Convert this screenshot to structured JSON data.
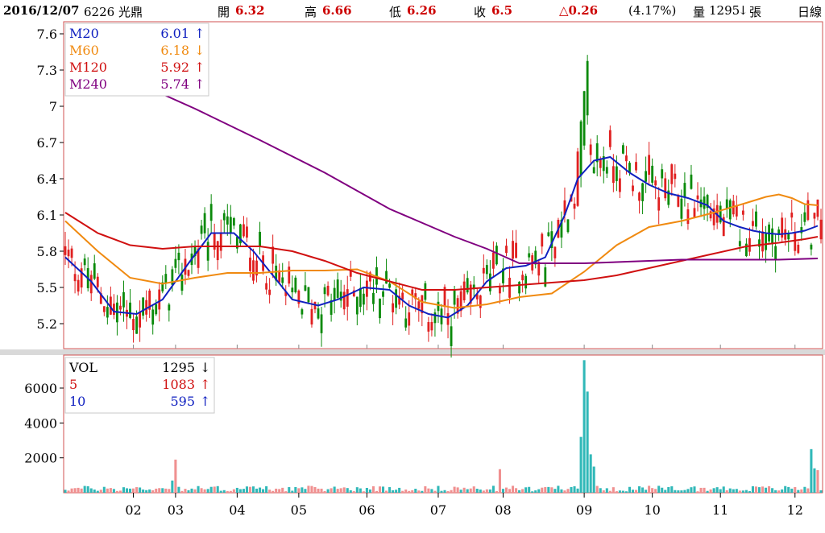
{
  "header": {
    "date": "2016/12/07",
    "stock": "6226 光鼎",
    "open_label": "開",
    "open": "6.32",
    "high_label": "高",
    "high": "6.66",
    "low_label": "低",
    "low": "6.26",
    "close_label": "收",
    "close": "6.5",
    "change": "△0.26",
    "change_pct": "(4.17%)",
    "volume_label": "量",
    "volume": "1295",
    "volume_arrow": "↓",
    "volume_unit": "張",
    "period": "日線"
  },
  "colors": {
    "up": "#e02020",
    "down": "#0a8a0a",
    "m20": "#1020c0",
    "m60": "#f08a10",
    "m120": "#d01010",
    "m240": "#800080",
    "vol_up": "#f09090",
    "vol_down": "#30b8b8"
  },
  "chart_data": [
    {
      "type": "candlestick",
      "ylim": [
        5.0,
        7.7
      ],
      "yticks": [
        "7.6",
        "7.3",
        "7",
        "6.7",
        "6.4",
        "6.1",
        "5.8",
        "5.5",
        "5.2"
      ],
      "ytick_values": [
        7.6,
        7.3,
        7.0,
        6.7,
        6.4,
        6.1,
        5.8,
        5.5,
        5.2
      ],
      "legend": [
        {
          "name": "M20",
          "value": "6.01",
          "arrow": "↑",
          "color": "#1020c0"
        },
        {
          "name": "M60",
          "value": "6.18",
          "arrow": "↓",
          "color": "#f08a10"
        },
        {
          "name": "M120",
          "value": "5.92",
          "arrow": "↑",
          "color": "#d01010"
        },
        {
          "name": "M240",
          "value": "5.74",
          "arrow": "↑",
          "color": "#800080"
        }
      ],
      "ma_series": [
        {
          "name": "M20",
          "color": "#1020c0",
          "t": [
            0,
            8,
            15,
            22,
            30,
            38,
            45,
            52,
            58,
            64,
            70,
            78,
            84,
            92,
            100,
            106,
            112,
            118,
            124,
            130,
            136,
            142,
            148,
            154,
            158,
            163,
            168,
            174,
            180,
            186,
            192,
            198,
            203,
            208,
            212,
            216,
            220,
            224,
            228,
            232
          ],
          "y": [
            5.75,
            5.55,
            5.3,
            5.28,
            5.4,
            5.7,
            5.95,
            5.95,
            5.8,
            5.6,
            5.4,
            5.35,
            5.4,
            5.5,
            5.48,
            5.35,
            5.28,
            5.25,
            5.35,
            5.55,
            5.66,
            5.68,
            5.75,
            6.1,
            6.4,
            6.55,
            6.58,
            6.45,
            6.35,
            6.28,
            6.24,
            6.18,
            6.05,
            6.0,
            5.97,
            5.95,
            5.94,
            5.95,
            5.97,
            6.01
          ]
        },
        {
          "name": "M60",
          "color": "#f08a10",
          "t": [
            0,
            10,
            20,
            30,
            40,
            50,
            60,
            70,
            80,
            90,
            100,
            110,
            120,
            130,
            140,
            150,
            160,
            170,
            180,
            190,
            200,
            210,
            216,
            220,
            224,
            228,
            232
          ],
          "y": [
            6.05,
            5.8,
            5.58,
            5.53,
            5.58,
            5.62,
            5.62,
            5.64,
            5.64,
            5.65,
            5.55,
            5.38,
            5.33,
            5.36,
            5.42,
            5.45,
            5.63,
            5.85,
            6.0,
            6.05,
            6.12,
            6.2,
            6.25,
            6.27,
            6.24,
            6.19,
            6.18
          ]
        },
        {
          "name": "M120",
          "color": "#d01010",
          "t": [
            0,
            10,
            20,
            30,
            40,
            50,
            60,
            70,
            80,
            90,
            100,
            110,
            120,
            130,
            140,
            150,
            160,
            170,
            180,
            190,
            200,
            210,
            220,
            228,
            232
          ],
          "y": [
            6.12,
            5.95,
            5.85,
            5.82,
            5.84,
            5.84,
            5.84,
            5.8,
            5.72,
            5.62,
            5.55,
            5.48,
            5.48,
            5.5,
            5.52,
            5.54,
            5.56,
            5.6,
            5.66,
            5.72,
            5.78,
            5.84,
            5.87,
            5.9,
            5.92
          ]
        },
        {
          "name": "M240",
          "color": "#800080",
          "t": [
            30,
            40,
            60,
            80,
            100,
            120,
            130,
            140,
            150,
            160,
            170,
            180,
            190,
            200,
            210,
            220,
            232
          ],
          "y": [
            7.1,
            6.98,
            6.72,
            6.45,
            6.15,
            5.92,
            5.82,
            5.7,
            5.7,
            5.7,
            5.71,
            5.72,
            5.73,
            5.73,
            5.73,
            5.73,
            5.74
          ]
        }
      ]
    },
    {
      "type": "bar",
      "ylim": [
        0,
        7800
      ],
      "yticks": [
        "6000",
        "4000",
        "2000"
      ],
      "ytick_values": [
        6000,
        4000,
        2000
      ],
      "legend": [
        {
          "name": "VOL",
          "value": "1295",
          "arrow": "↓",
          "color": "#000000"
        },
        {
          "name": "5",
          "value": "1083",
          "arrow": "↑",
          "color": "#d01010"
        },
        {
          "name": "10",
          "value": "595",
          "arrow": "↑",
          "color": "#1020c0"
        }
      ],
      "spikes": [
        {
          "t": 34,
          "v": 1900
        },
        {
          "t": 33,
          "v": 700
        },
        {
          "t": 134,
          "v": 1350
        },
        {
          "t": 159,
          "v": 3200
        },
        {
          "t": 160,
          "v": 7600
        },
        {
          "t": 161,
          "v": 5800
        },
        {
          "t": 162,
          "v": 2200
        },
        {
          "t": 163,
          "v": 1500
        },
        {
          "t": 230,
          "v": 2500
        },
        {
          "t": 231,
          "v": 1400
        },
        {
          "t": 232,
          "v": 1295
        }
      ]
    }
  ],
  "x_axis": {
    "labels": [
      "02",
      "03",
      "04",
      "05",
      "06",
      "07",
      "08",
      "09",
      "10",
      "11",
      "12"
    ],
    "positions": [
      21,
      34,
      53,
      72,
      93,
      115,
      135,
      160,
      181,
      202,
      225
    ],
    "total": 234
  }
}
